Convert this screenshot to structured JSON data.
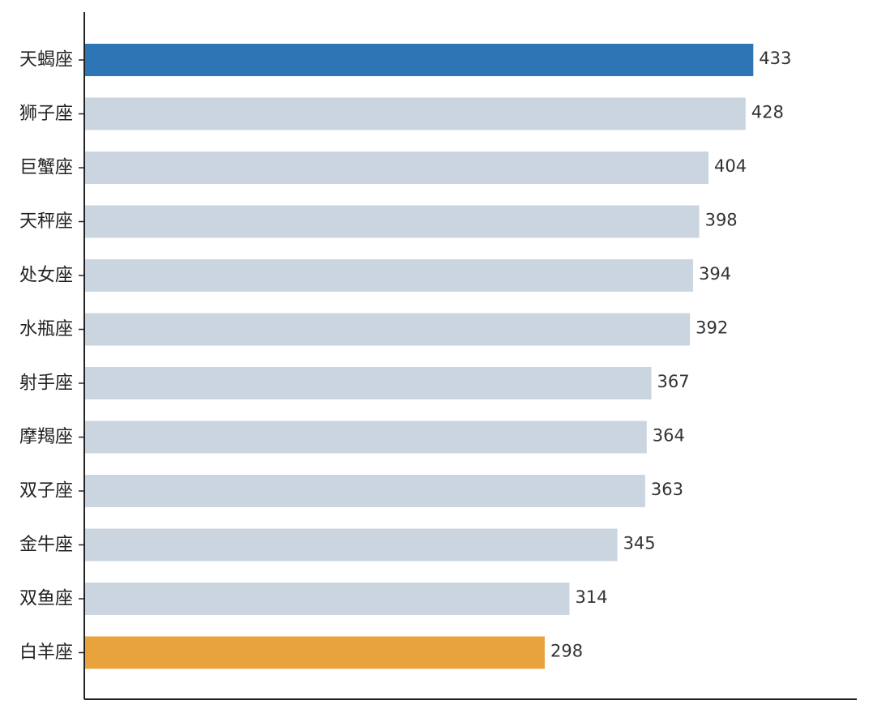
{
  "chart_data": {
    "type": "bar",
    "orientation": "horizontal",
    "categories": [
      "天蝎座",
      "狮子座",
      "巨蟹座",
      "天秤座",
      "处女座",
      "水瓶座",
      "射手座",
      "摩羯座",
      "双子座",
      "金牛座",
      "双鱼座",
      "白羊座"
    ],
    "values": [
      433,
      428,
      404,
      398,
      394,
      392,
      367,
      364,
      363,
      345,
      314,
      298
    ],
    "title": "",
    "xlabel": "",
    "ylabel": "",
    "xlim": [
      0,
      500
    ],
    "grid": false,
    "legend": "none",
    "colors": {
      "highlight_max": "#2e75b6",
      "highlight_min": "#e8a33d",
      "default": "#cbd5e0",
      "axis": "#222222"
    }
  }
}
